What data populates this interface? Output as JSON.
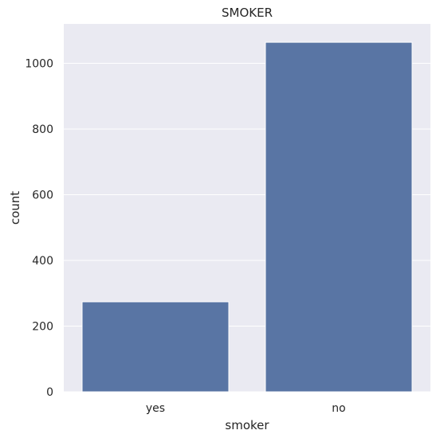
{
  "chart_data": {
    "type": "bar",
    "title": "SMOKER",
    "xlabel": "smoker",
    "ylabel": "count",
    "categories": [
      "yes",
      "no"
    ],
    "values": [
      274,
      1064
    ],
    "ylim": [
      0,
      1120
    ],
    "yticks": [
      0,
      200,
      400,
      600,
      800,
      1000
    ],
    "grid": true,
    "colors": {
      "bar": "#5975a4",
      "plot_background": "#eaeaf2",
      "grid": "#ffffff",
      "text": "#262626"
    }
  }
}
